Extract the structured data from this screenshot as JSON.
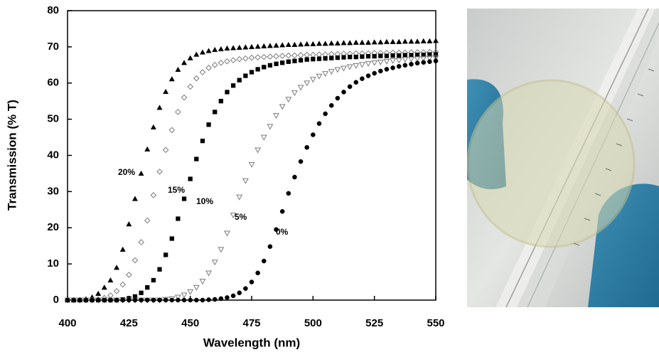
{
  "chart_data": {
    "type": "scatter",
    "x_label": "Wavelength (nm)",
    "y_label": "Transmission (% T)",
    "xlim": [
      400,
      550
    ],
    "ylim": [
      0,
      80
    ],
    "xticks": [
      400,
      425,
      450,
      475,
      500,
      525,
      550
    ],
    "yticks": [
      0,
      10,
      20,
      30,
      40,
      50,
      60,
      70,
      80
    ],
    "x": [
      400,
      402.5,
      405,
      407.5,
      410,
      412.5,
      415,
      417.5,
      420,
      422.5,
      425,
      427.5,
      430,
      432.5,
      435,
      437.5,
      440,
      442.5,
      445,
      447.5,
      450,
      452.5,
      455,
      457.5,
      460,
      462.5,
      465,
      467.5,
      470,
      472.5,
      475,
      477.5,
      480,
      482.5,
      485,
      487.5,
      490,
      492.5,
      495,
      497.5,
      500,
      502.5,
      505,
      507.5,
      510,
      512.5,
      515,
      517.5,
      520,
      522.5,
      525,
      527.5,
      530,
      532.5,
      535,
      537.5,
      540,
      542.5,
      545,
      547.5,
      550
    ],
    "series": [
      {
        "name": "20%",
        "marker": "triangle-up",
        "color": "#000000",
        "filled": true,
        "values": [
          0,
          0,
          0.1,
          0.3,
          0.8,
          1.8,
          3.5,
          5.5,
          9,
          14,
          21,
          28,
          35,
          41.7,
          47.8,
          53.2,
          57.6,
          61.1,
          63.7,
          65.6,
          66.9,
          67.9,
          68.5,
          68.9,
          69.2,
          69.4,
          69.6,
          69.7,
          69.8,
          69.9,
          70,
          70.1,
          70.2,
          70.3,
          70.4,
          70.5,
          70.6,
          70.6,
          70.7,
          70.8,
          70.8,
          70.9,
          70.9,
          71,
          71,
          71.1,
          71.1,
          71.2,
          71.2,
          71.2,
          71.3,
          71.3,
          71.4,
          71.4,
          71.4,
          71.5,
          71.5,
          71.5,
          71.6,
          71.6,
          71.7
        ]
      },
      {
        "name": "15%",
        "marker": "diamond",
        "color": "#7a7a7a",
        "filled": false,
        "values": [
          0,
          0,
          0,
          0,
          0,
          0.2,
          0.6,
          1.3,
          2.5,
          4.3,
          7,
          11,
          16,
          22,
          29,
          35.5,
          41.5,
          47,
          52,
          56,
          59,
          61.3,
          63,
          64.2,
          65,
          65.6,
          66,
          66.3,
          66.6,
          66.8,
          67,
          67.1,
          67.2,
          67.3,
          67.4,
          67.5,
          67.6,
          67.6,
          67.7,
          67.8,
          67.8,
          67.9,
          67.9,
          68,
          68,
          68.1,
          68.1,
          68.2,
          68.2,
          68.2,
          68.3,
          68.3,
          68.3,
          68.4,
          68.4,
          68.4,
          68.5,
          68.5,
          68.5,
          68.6,
          68.6
        ]
      },
      {
        "name": "10%",
        "marker": "square",
        "color": "#000000",
        "filled": true,
        "values": [
          0,
          0,
          0,
          0,
          0,
          0,
          0,
          0,
          0,
          0.2,
          0.5,
          1,
          2,
          3.5,
          5.5,
          8.5,
          12.5,
          17,
          22.5,
          28,
          33.5,
          39,
          44,
          48.5,
          52,
          55,
          57.5,
          59.3,
          60.8,
          62,
          63,
          63.8,
          64.4,
          64.9,
          65.3,
          65.6,
          65.9,
          66.1,
          66.3,
          66.5,
          66.6,
          66.7,
          66.8,
          66.9,
          67,
          67.1,
          67.2,
          67.2,
          67.3,
          67.4,
          67.4,
          67.5,
          67.5,
          67.6,
          67.6,
          67.7,
          67.7,
          67.8,
          67.8,
          67.9,
          67.9
        ]
      },
      {
        "name": "5%",
        "marker": "triangle-down",
        "color": "#7a7a7a",
        "filled": false,
        "values": [
          0,
          0,
          0,
          0,
          0,
          0,
          0,
          0,
          0,
          0,
          0,
          0,
          0,
          0,
          0,
          0,
          0.2,
          0.4,
          0.8,
          1.4,
          2.3,
          3.5,
          5.2,
          7.5,
          10.5,
          14,
          18.5,
          23.5,
          28.5,
          33,
          37.5,
          41.5,
          45,
          48,
          51,
          53.5,
          55.5,
          57.3,
          58.8,
          60,
          61,
          61.9,
          62.6,
          63.2,
          63.7,
          64.1,
          64.5,
          64.8,
          65.1,
          65.4,
          65.6,
          65.8,
          66,
          66.2,
          66.3,
          66.5,
          66.6,
          66.7,
          66.8,
          66.9,
          67
        ]
      },
      {
        "name": "0%",
        "marker": "circle",
        "color": "#000000",
        "filled": true,
        "values": [
          0,
          0,
          0,
          0,
          0,
          0,
          0,
          0,
          0,
          0,
          0,
          0,
          0,
          0,
          0,
          0,
          0,
          0,
          0,
          0,
          0,
          0,
          0,
          0.1,
          0.2,
          0.4,
          0.7,
          1.2,
          2,
          3.2,
          5,
          7.5,
          10.8,
          14.8,
          19.5,
          24.5,
          29.5,
          34,
          38.3,
          42.2,
          45.7,
          48.8,
          51.5,
          53.8,
          55.8,
          57.5,
          59,
          60.2,
          61.2,
          62,
          62.7,
          63.3,
          63.8,
          64.2,
          64.6,
          64.9,
          65.2,
          65.5,
          65.7,
          65.9,
          66.1
        ]
      }
    ]
  }
}
